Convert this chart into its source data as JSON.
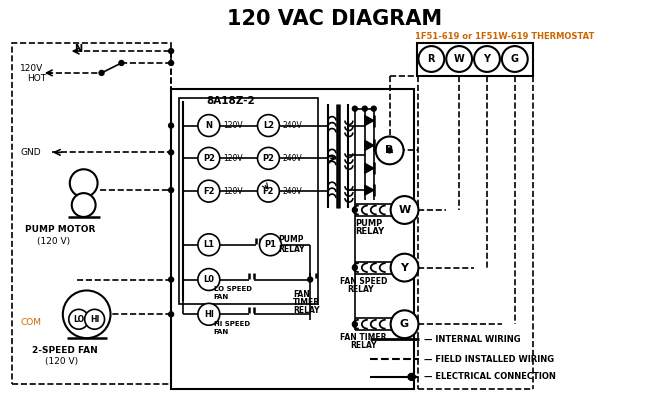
{
  "title": "120 VAC DIAGRAM",
  "title_fontsize": 15,
  "bg_color": "#ffffff",
  "line_color": "#000000",
  "orange_color": "#cc6600",
  "thermostat_label": "1F51-619 or 1F51W-619 THERMOSTAT",
  "box_label": "8A18Z-2"
}
